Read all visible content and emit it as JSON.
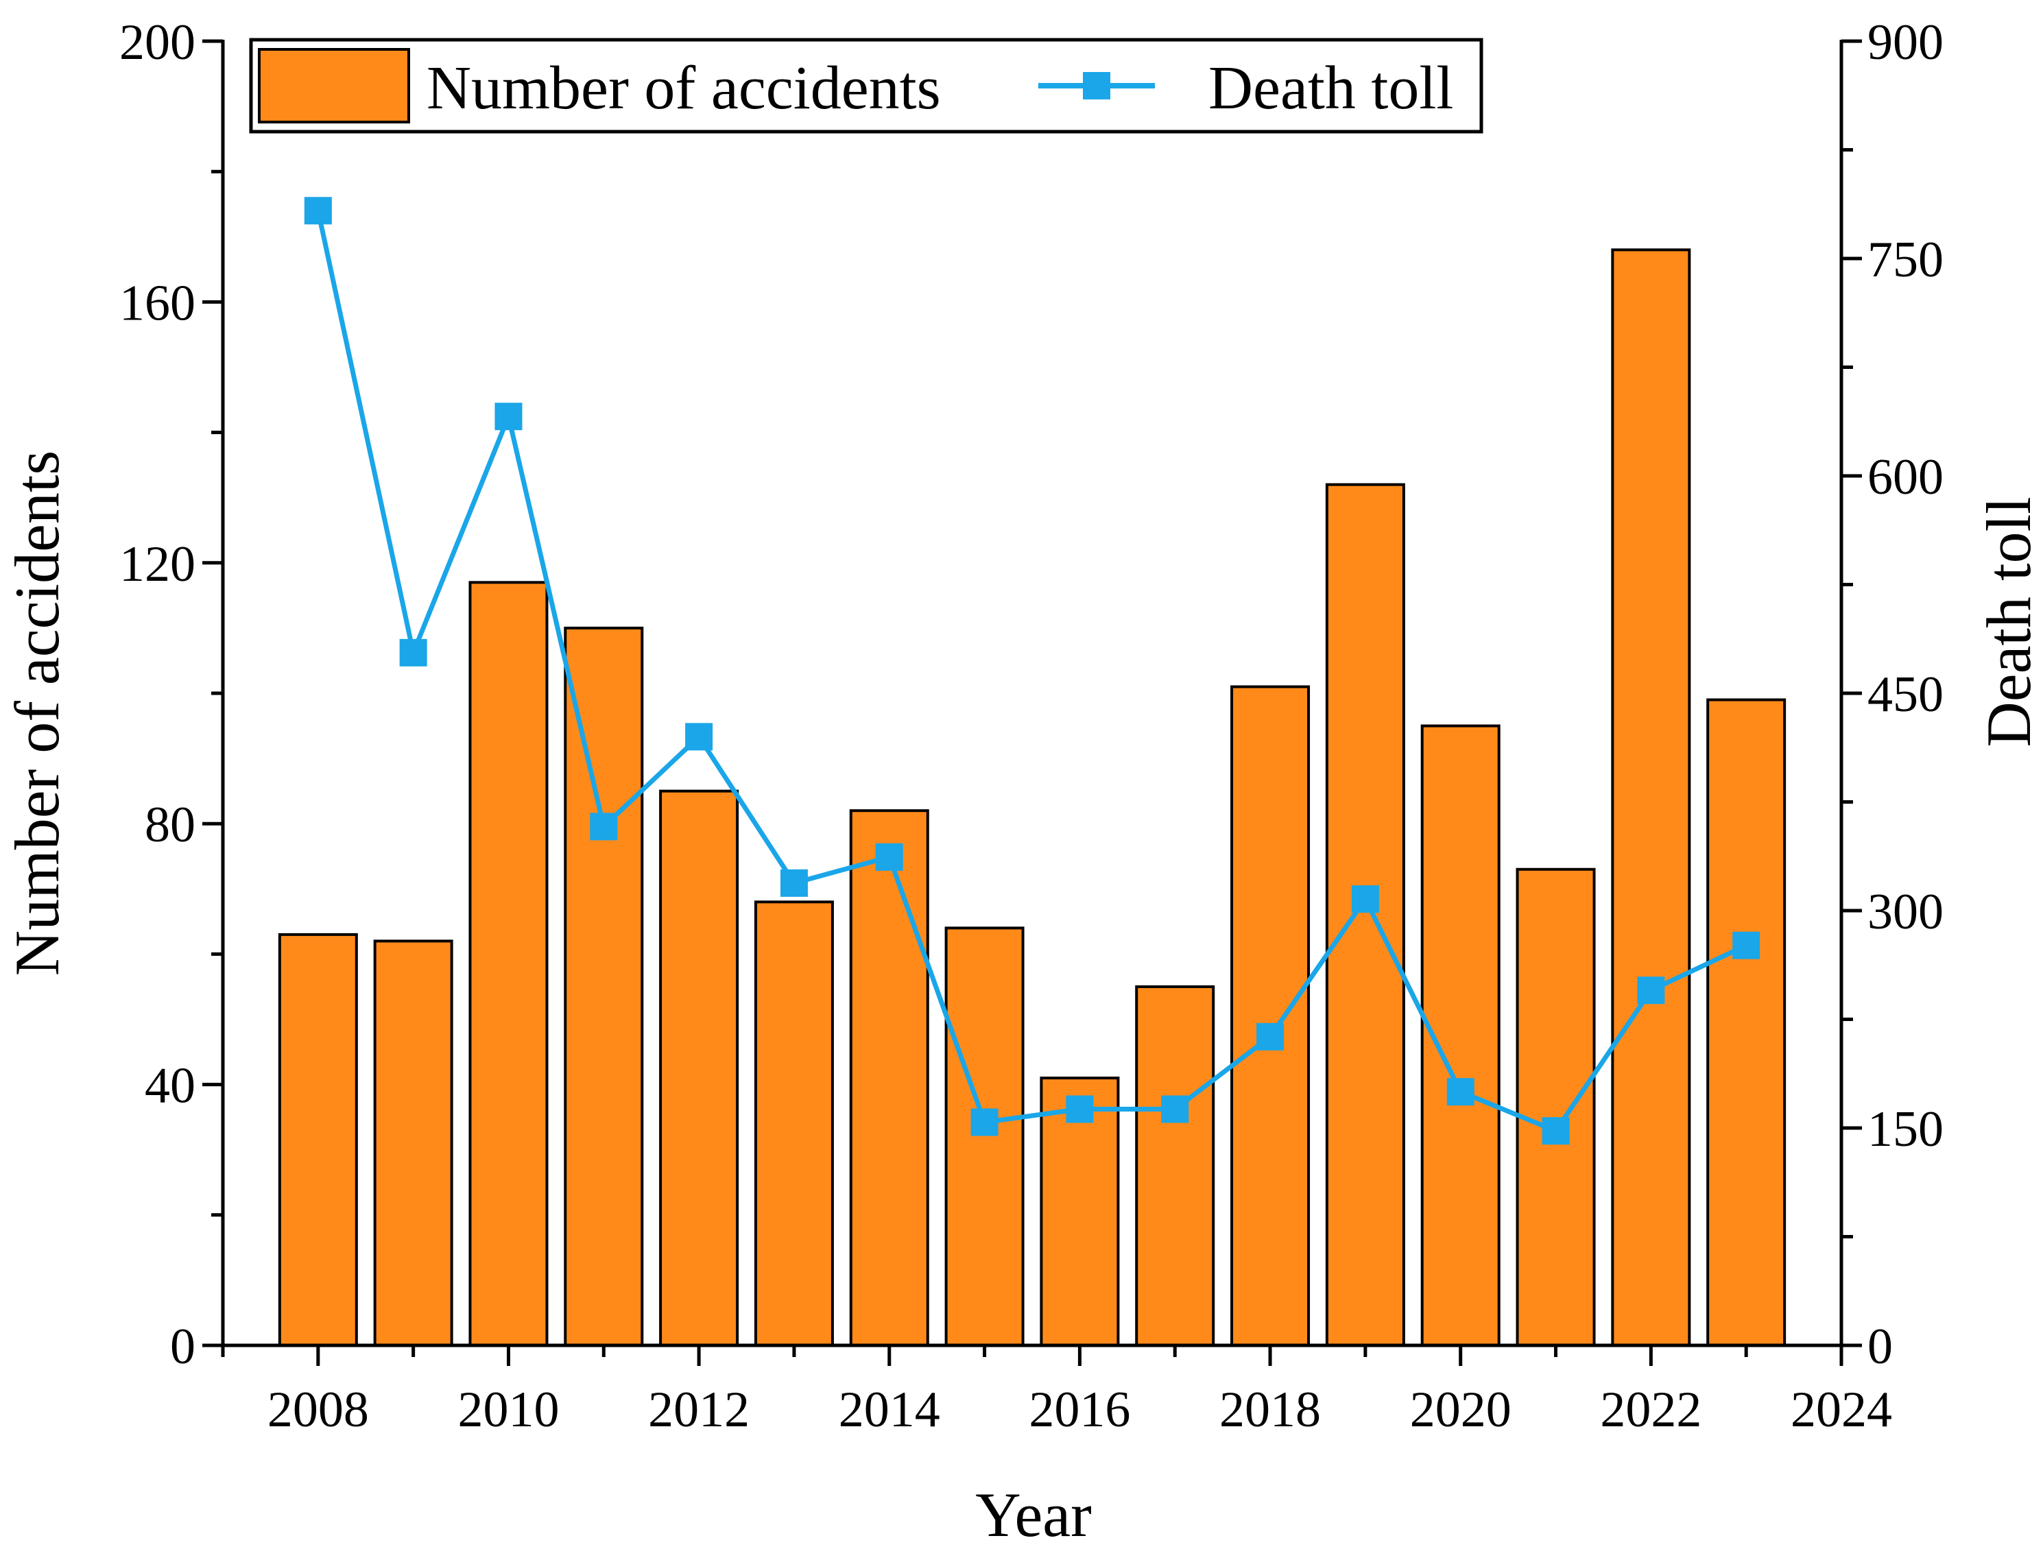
{
  "chart_data": {
    "type": "bar",
    "title": "",
    "xlabel": "Year",
    "ylabel": "Number of accidents",
    "y2label": "Death toll",
    "x": [
      2008,
      2009,
      2010,
      2011,
      2012,
      2013,
      2014,
      2015,
      2016,
      2017,
      2018,
      2019,
      2020,
      2021,
      2022,
      2023
    ],
    "xlim": [
      2007,
      2024
    ],
    "ylim": [
      0,
      200
    ],
    "y2lim": [
      0,
      900
    ],
    "xticks": [
      "2008",
      "2010",
      "2012",
      "2014",
      "2016",
      "2018",
      "2020",
      "2022",
      "2024"
    ],
    "xtick_values": [
      2008,
      2010,
      2012,
      2014,
      2016,
      2018,
      2020,
      2022,
      2024
    ],
    "yticks": [
      "0",
      "40",
      "80",
      "120",
      "160",
      "200"
    ],
    "ytick_values": [
      0,
      40,
      80,
      120,
      160,
      200
    ],
    "y2ticks": [
      "0",
      "150",
      "300",
      "450",
      "600",
      "750",
      "900"
    ],
    "y2tick_values": [
      0,
      150,
      300,
      450,
      600,
      750,
      900
    ],
    "legend_position": "top",
    "series": [
      {
        "name": "Number of accidents",
        "type": "bar",
        "axis": "left",
        "color": "#FF8A1A",
        "values": [
          63,
          62,
          117,
          110,
          85,
          68,
          82,
          64,
          41,
          55,
          101,
          132,
          95,
          73,
          168,
          99
        ]
      },
      {
        "name": "Death toll",
        "type": "line",
        "marker": "square",
        "axis": "right",
        "color": "#1AA6E8",
        "values": [
          783,
          478,
          641,
          358,
          420,
          319,
          337,
          154,
          163,
          163,
          213,
          308,
          175,
          148,
          245,
          276
        ]
      }
    ]
  }
}
